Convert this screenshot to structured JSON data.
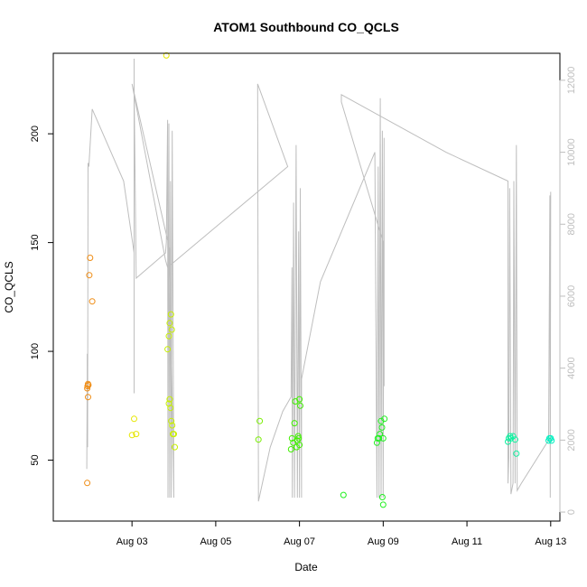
{
  "chart_data": {
    "type": "scatter",
    "title": "ATOM1 Southbound CO_QCLS",
    "xlabel": "Date",
    "ylabel": "CO_QCLS",
    "xlim": [
      1.12,
      13.22
    ],
    "ylim": [
      22,
      237
    ],
    "y2lim": [
      -250,
      12750
    ],
    "x_ticks": [
      {
        "day": 3,
        "label": "Aug 03"
      },
      {
        "day": 5,
        "label": "Aug 05"
      },
      {
        "day": 7,
        "label": "Aug 07"
      },
      {
        "day": 9,
        "label": "Aug 09"
      },
      {
        "day": 11,
        "label": "Aug 11"
      },
      {
        "day": 13,
        "label": "Aug 13"
      }
    ],
    "y_ticks": [
      "50",
      "100",
      "150",
      "200"
    ],
    "y2_ticks": [
      "0",
      "2000",
      "4000",
      "6000",
      "8000",
      "10000",
      "12000"
    ],
    "colors": {
      "altitude_line": "#bebebe",
      "aug01": "#ef8c14",
      "aug03": "#e6e600",
      "aug04": "#c8f000",
      "aug06": "#78ee00",
      "aug07": "#40f000",
      "aug09": "#20f020",
      "aug12": "#10f0a0",
      "aug13": "#00f0c0"
    },
    "series": [
      {
        "name": "CO_QCLS",
        "group": "aug01",
        "points": [
          [
            1.93,
            39.5
          ],
          [
            1.95,
            79
          ],
          [
            1.93,
            83
          ],
          [
            1.94,
            84
          ],
          [
            1.95,
            85
          ],
          [
            1.96,
            84.5
          ],
          [
            1.98,
            135
          ],
          [
            2.0,
            143
          ],
          [
            2.05,
            123
          ]
        ]
      },
      {
        "name": "CO_QCLS",
        "group": "aug03",
        "points": [
          [
            3.0,
            61.5
          ],
          [
            3.05,
            69
          ],
          [
            3.1,
            62
          ],
          [
            3.82,
            236
          ]
        ]
      },
      {
        "name": "CO_QCLS",
        "group": "aug04",
        "points": [
          [
            3.85,
            101
          ],
          [
            3.88,
            107
          ],
          [
            3.9,
            113
          ],
          [
            3.93,
            117
          ],
          [
            3.95,
            110
          ],
          [
            3.9,
            78
          ],
          [
            3.88,
            76
          ],
          [
            3.92,
            74
          ],
          [
            3.94,
            68
          ],
          [
            3.96,
            66
          ],
          [
            3.98,
            62
          ],
          [
            4.0,
            62
          ],
          [
            4.02,
            56
          ]
        ]
      },
      {
        "name": "CO_QCLS",
        "group": "aug06",
        "points": [
          [
            6.02,
            59.5
          ],
          [
            6.05,
            68
          ]
        ]
      },
      {
        "name": "CO_QCLS",
        "group": "aug07",
        "points": [
          [
            6.8,
            55
          ],
          [
            6.82,
            60
          ],
          [
            6.85,
            58
          ],
          [
            6.88,
            67
          ],
          [
            6.9,
            77
          ],
          [
            6.93,
            56
          ],
          [
            6.95,
            59
          ],
          [
            6.97,
            61
          ],
          [
            6.98,
            60
          ],
          [
            7.0,
            78
          ],
          [
            7.02,
            75
          ],
          [
            7.0,
            57
          ]
        ]
      },
      {
        "name": "CO_QCLS",
        "group": "aug09",
        "points": [
          [
            8.05,
            34
          ],
          [
            8.85,
            58
          ],
          [
            8.87,
            60
          ],
          [
            8.9,
            60
          ],
          [
            8.92,
            62
          ],
          [
            8.95,
            68
          ],
          [
            8.97,
            65
          ],
          [
            9.0,
            60
          ],
          [
            9.03,
            69
          ],
          [
            8.98,
            33
          ],
          [
            9.0,
            29.5
          ]
        ]
      },
      {
        "name": "CO_QCLS",
        "group": "aug12",
        "points": [
          [
            11.98,
            58.5
          ],
          [
            12.0,
            60
          ],
          [
            12.03,
            61
          ],
          [
            12.05,
            60
          ],
          [
            12.1,
            61
          ],
          [
            12.15,
            59.5
          ],
          [
            12.18,
            53
          ]
        ]
      },
      {
        "name": "CO_QCLS",
        "group": "aug13",
        "points": [
          [
            12.95,
            59
          ],
          [
            12.97,
            60
          ],
          [
            13.0,
            60
          ],
          [
            13.02,
            59
          ]
        ]
      }
    ],
    "secondary_series": {
      "name": "altitude",
      "axis": "right",
      "points": [
        [
          1.92,
          1200
        ],
        [
          1.93,
          3800
        ],
        [
          1.93,
          4400
        ],
        [
          1.94,
          1800
        ],
        [
          1.95,
          9700
        ],
        [
          1.97,
          9600
        ],
        [
          2.05,
          11200
        ],
        [
          2.8,
          9200
        ],
        [
          3.05,
          7200
        ],
        [
          3.05,
          3300
        ],
        [
          3.05,
          11900
        ],
        [
          3.05,
          12600
        ],
        [
          3.05,
          11800
        ],
        [
          3.1,
          6500
        ],
        [
          3.8,
          7200
        ],
        [
          3.82,
          7500
        ],
        [
          3.85,
          10900
        ],
        [
          3.86,
          400
        ],
        [
          3.88,
          10800
        ],
        [
          3.9,
          400
        ],
        [
          3.92,
          9200
        ],
        [
          3.94,
          400
        ],
        [
          3.96,
          10600
        ],
        [
          4.0,
          400
        ],
        [
          3.9,
          7300
        ],
        [
          3.0,
          11900
        ],
        [
          3.8,
          7000
        ],
        [
          3.85,
          6800
        ],
        [
          6.72,
          9600
        ],
        [
          6.0,
          11900
        ],
        [
          6.02,
          300
        ],
        [
          6.3,
          1800
        ],
        [
          6.6,
          2800
        ],
        [
          6.8,
          3200
        ],
        [
          6.82,
          6800
        ],
        [
          6.83,
          400
        ],
        [
          6.86,
          8600
        ],
        [
          6.88,
          400
        ],
        [
          6.92,
          10200
        ],
        [
          6.95,
          400
        ],
        [
          6.98,
          7800
        ],
        [
          7.0,
          400
        ],
        [
          7.02,
          9000
        ],
        [
          7.05,
          400
        ],
        [
          7.05,
          3700
        ],
        [
          7.5,
          6400
        ],
        [
          8.8,
          10000
        ],
        [
          8.85,
          400
        ],
        [
          8.88,
          9600
        ],
        [
          8.9,
          400
        ],
        [
          8.93,
          11500
        ],
        [
          8.95,
          400
        ],
        [
          8.98,
          10600
        ],
        [
          9.0,
          400
        ],
        [
          9.02,
          10400
        ],
        [
          9.02,
          3500
        ],
        [
          9.0,
          7500
        ],
        [
          8.0,
          11400
        ],
        [
          8.0,
          11600
        ],
        [
          10.5,
          10000
        ],
        [
          11.98,
          9200
        ],
        [
          11.98,
          800
        ],
        [
          12.0,
          1500
        ],
        [
          12.02,
          9000
        ],
        [
          12.05,
          500
        ],
        [
          12.1,
          800
        ],
        [
          12.12,
          9200
        ],
        [
          12.15,
          800
        ],
        [
          12.18,
          10200
        ],
        [
          12.2,
          600
        ],
        [
          12.3,
          800
        ],
        [
          12.95,
          2000
        ],
        [
          12.98,
          8800
        ],
        [
          12.99,
          400
        ],
        [
          13.0,
          8900
        ]
      ]
    }
  }
}
